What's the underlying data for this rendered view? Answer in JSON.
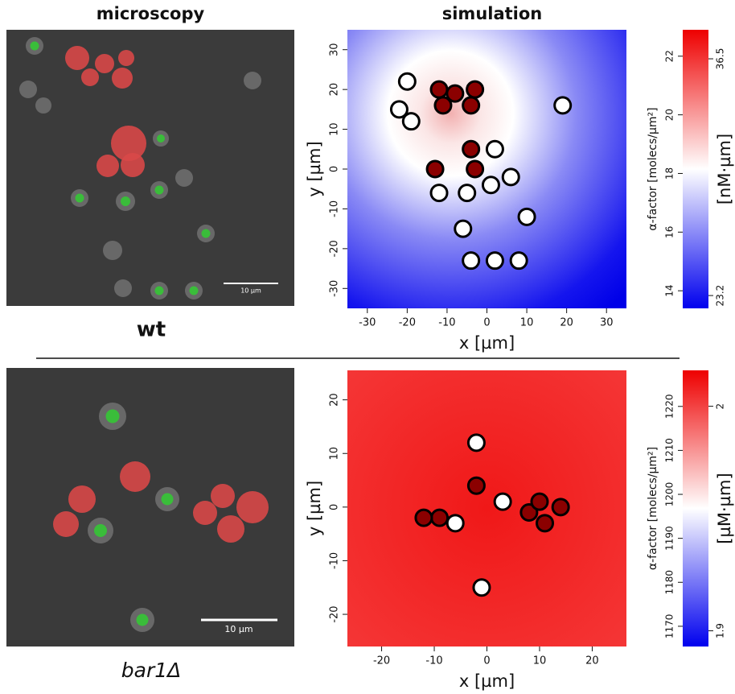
{
  "column_titles": [
    "microscopy",
    "simulation"
  ],
  "rows": [
    {
      "label": "wt",
      "scale_bar": "10 µm"
    },
    {
      "label": "bar1Δ",
      "scale_bar": "10 µm"
    }
  ],
  "simulations": [
    {
      "type": "heatmap",
      "xlabel": "x [µm]",
      "ylabel": "y [µm]",
      "xlim": [
        -35,
        35
      ],
      "ylim": [
        -35,
        35
      ],
      "xticks": [
        -30,
        -20,
        -10,
        0,
        10,
        20,
        30
      ],
      "yticks": [
        -30,
        -20,
        -10,
        0,
        10,
        20,
        30
      ],
      "white_cells": {
        "x": [
          -20,
          -22,
          -19,
          19,
          2,
          -12,
          -5,
          1,
          6,
          10,
          -6,
          -4,
          2,
          8
        ],
        "y": [
          22,
          15,
          12,
          16,
          5,
          -6,
          -6,
          -4,
          -2,
          -12,
          -15,
          -23,
          -23,
          -23
        ]
      },
      "red_cells": {
        "x": [
          -12,
          -8,
          -3,
          -11,
          -4,
          -4,
          -13,
          -3
        ],
        "y": [
          20,
          19,
          20,
          16,
          16,
          5,
          0,
          0
        ]
      },
      "colorbar": {
        "label": "α-factor [molecs/µm²]",
        "label2": "[nM·µm]",
        "lim": [
          13.4,
          22.9
        ],
        "ticks": [
          14,
          16,
          18,
          20,
          22
        ],
        "lim2": [
          22.48,
          38.13
        ],
        "ticks2": [
          23.2,
          36.5
        ]
      }
    },
    {
      "type": "heatmap",
      "xlabel": "x [µm]",
      "ylabel": "y [µm]",
      "xlim": [
        -26.5,
        26.5
      ],
      "ylim": [
        -26,
        25.5
      ],
      "xticks": [
        -20,
        -10,
        0,
        10,
        20
      ],
      "yticks": [
        -20,
        -10,
        0,
        10,
        20
      ],
      "white_cells": {
        "x": [
          -2,
          3,
          -6,
          -1
        ],
        "y": [
          12,
          1,
          -3,
          -15
        ]
      },
      "red_cells": {
        "x": [
          -9,
          -12,
          -2,
          8,
          10,
          14,
          11
        ],
        "y": [
          -2,
          -2,
          4,
          -1,
          1,
          0,
          -3
        ]
      },
      "colorbar": {
        "label": "α-factor [molecs/µm²]",
        "label2": "[µM·µm]",
        "lim": [
          1165.4,
          1228.2
        ],
        "ticks": [
          1170,
          1180,
          1190,
          1200,
          1210,
          1220
        ],
        "lim2": [
          1.893,
          2.016
        ],
        "ticks2": [
          1.9,
          2
        ]
      }
    }
  ]
}
